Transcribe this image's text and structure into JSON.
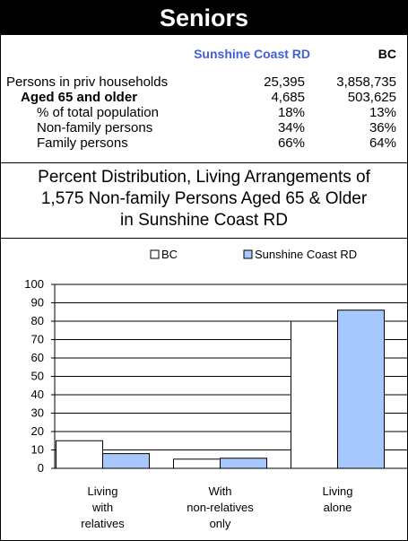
{
  "banner": {
    "title": "Seniors"
  },
  "stats": {
    "col_region": "Sunshine Coast RD",
    "col_bc": "BC",
    "rows": [
      {
        "label": "Persons in priv households",
        "region": "25,395",
        "bc": "3,858,735"
      },
      {
        "label": "Aged 65 and older",
        "region": "4,685",
        "bc": "503,625"
      },
      {
        "label": "% of total population",
        "region": "18%",
        "bc": "13%"
      },
      {
        "label": "Non-family persons",
        "region": "34%",
        "bc": "36%"
      },
      {
        "label": "Family persons",
        "region": "66%",
        "bc": "64%"
      }
    ]
  },
  "caption": {
    "line1": "Percent Distribution, Living Arrangements of",
    "line2": "1,575 Non-family Persons Aged 65 & Older",
    "line3": "in Sunshine Coast RD"
  },
  "chart_data": {
    "type": "bar",
    "categories": [
      [
        "Living",
        "with",
        "relatives"
      ],
      [
        "With",
        "non-relatives",
        "only"
      ],
      [
        "Living",
        "alone"
      ]
    ],
    "series": [
      {
        "name": "BC",
        "values": [
          15,
          5,
          80
        ],
        "color": "#ffffff"
      },
      {
        "name": "Sunshine Coast RD",
        "values": [
          8,
          5.5,
          86
        ],
        "color": "#a6c8ff"
      }
    ],
    "ylim": [
      0,
      100
    ],
    "yticks": [
      "0",
      "10",
      "20",
      "30",
      "40",
      "50",
      "60",
      "70",
      "80",
      "90",
      "100"
    ],
    "grid": true,
    "legend_position": "top"
  }
}
